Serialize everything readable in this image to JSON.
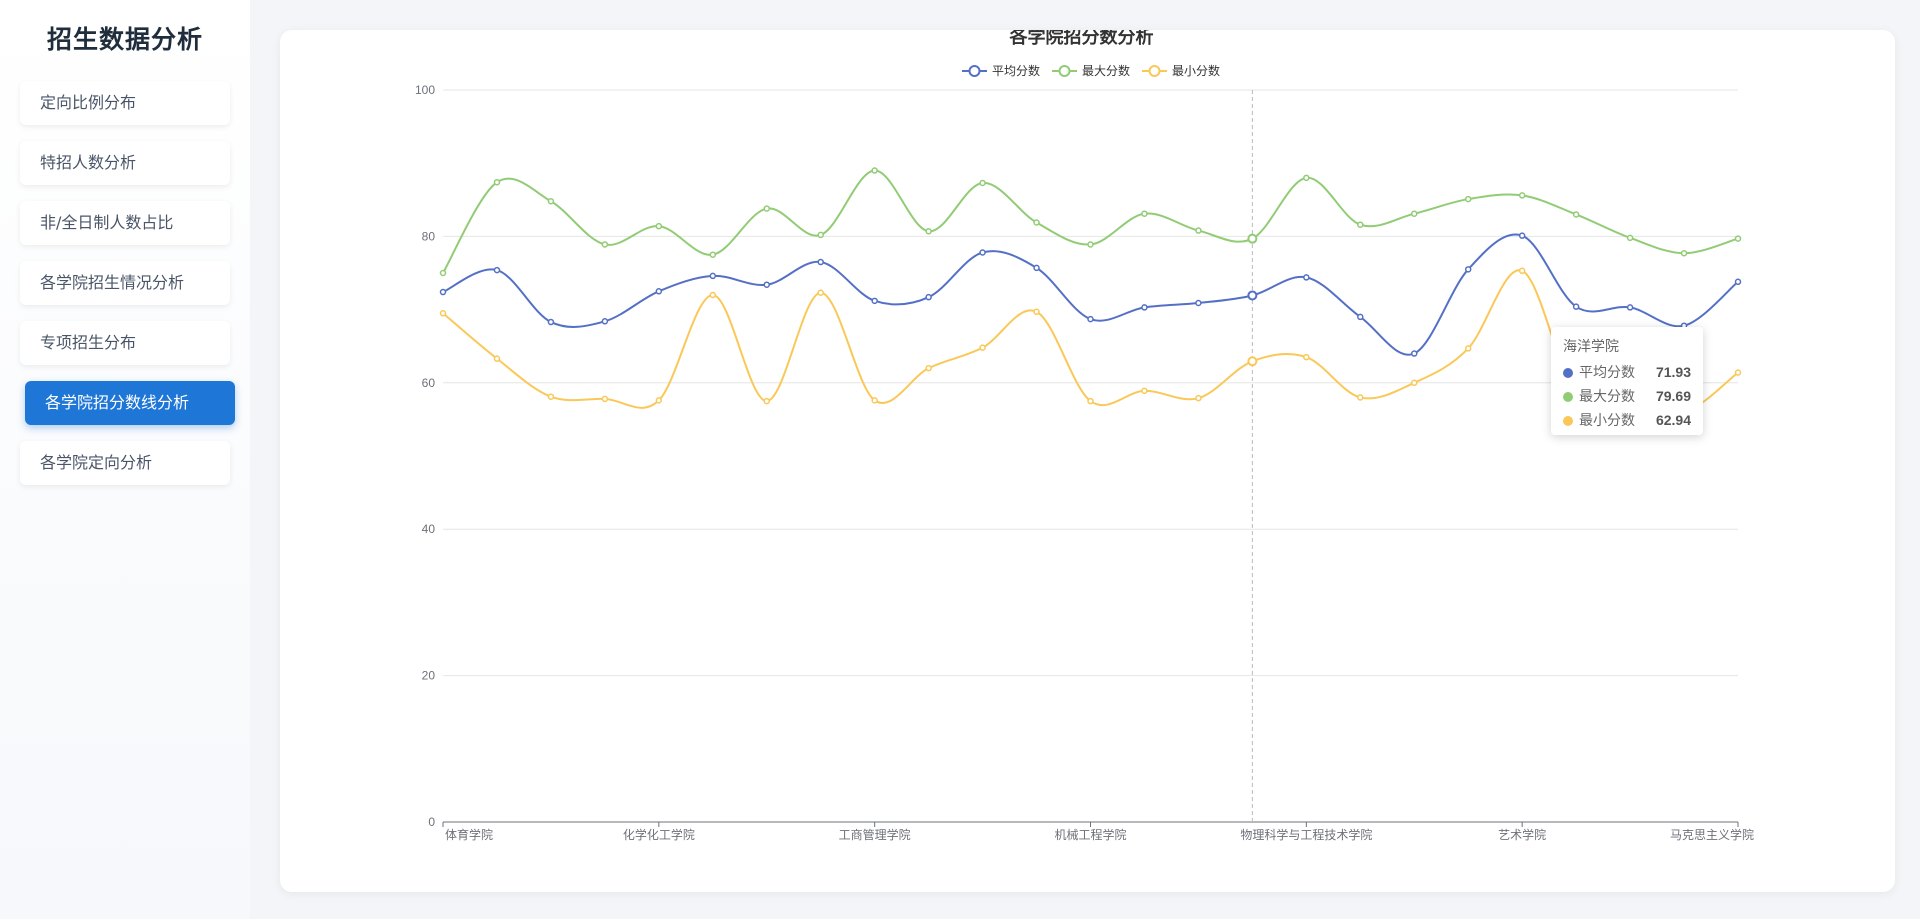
{
  "app": {
    "title": "招生数据分析"
  },
  "sidebar": {
    "items": [
      {
        "label": "定向比例分布",
        "active": false
      },
      {
        "label": "特招人数分析",
        "active": false
      },
      {
        "label": "非/全日制人数占比",
        "active": false
      },
      {
        "label": "各学院招生情况分析",
        "active": false
      },
      {
        "label": "专项招生分布",
        "active": false
      },
      {
        "label": "各学院招分数线分析",
        "active": true
      },
      {
        "label": "各学院定向分析",
        "active": false
      }
    ]
  },
  "colors": {
    "avg": "#5470c6",
    "max": "#91cc75",
    "min": "#fac858",
    "accent": "#1e76d6"
  },
  "tooltip": {
    "title": "海洋学院",
    "rows": [
      {
        "label": "平均分数",
        "value": "71.93",
        "color": "#5470c6"
      },
      {
        "label": "最大分数",
        "value": "79.69",
        "color": "#91cc75"
      },
      {
        "label": "最小分数",
        "value": "62.94",
        "color": "#fac858"
      }
    ]
  },
  "chart_data": {
    "type": "line",
    "title": "各学院招分数分析",
    "xlabel": "",
    "ylabel": "",
    "ylim": [
      0,
      100
    ],
    "yticks": [
      0,
      20,
      40,
      60,
      80,
      100
    ],
    "grid": true,
    "legend_position": "top-center",
    "smooth": true,
    "categories": [
      "体育学院",
      "",
      "",
      "",
      "化学化工学院",
      "",
      "",
      "",
      "工商管理学院",
      "",
      "",
      "",
      "机械工程学院",
      "",
      "",
      "",
      "物理科学与工程技术学院",
      "",
      "",
      "",
      "艺术学院",
      "",
      "",
      "",
      "马克思主义学院"
    ],
    "labeled_categories": [
      "体育学院",
      "化学化工学院",
      "工商管理学院",
      "机械工程学院",
      "物理科学与工程技术学院",
      "艺术学院",
      "马克思主义学院"
    ],
    "hover_category": "海洋学院",
    "hover_index": 15,
    "series": [
      {
        "name": "平均分数",
        "color": "#5470c6",
        "values": [
          72.4,
          75.4,
          68.3,
          68.4,
          72.5,
          74.6,
          73.4,
          76.5,
          71.2,
          71.7,
          77.8,
          75.7,
          68.7,
          70.3,
          70.9,
          71.93,
          74.4,
          69.0,
          64.0,
          75.5,
          80.1,
          70.4,
          70.3,
          67.8,
          73.8
        ]
      },
      {
        "name": "最大分数",
        "color": "#91cc75",
        "values": [
          75.0,
          87.4,
          84.8,
          78.9,
          81.4,
          77.5,
          83.8,
          80.2,
          89.0,
          80.7,
          87.3,
          81.9,
          78.9,
          83.1,
          80.8,
          79.69,
          88.0,
          81.6,
          83.1,
          85.1,
          85.6,
          83.0,
          79.8,
          77.7,
          79.7
        ]
      },
      {
        "name": "最小分数",
        "color": "#fac858",
        "values": [
          69.5,
          63.3,
          58.1,
          57.8,
          57.6,
          72.0,
          57.5,
          72.3,
          57.6,
          62.0,
          64.8,
          69.7,
          57.5,
          58.9,
          57.9,
          62.94,
          63.5,
          58.0,
          60.0,
          64.7,
          75.3,
          58.3,
          56.9,
          55.9,
          61.4
        ]
      }
    ]
  }
}
